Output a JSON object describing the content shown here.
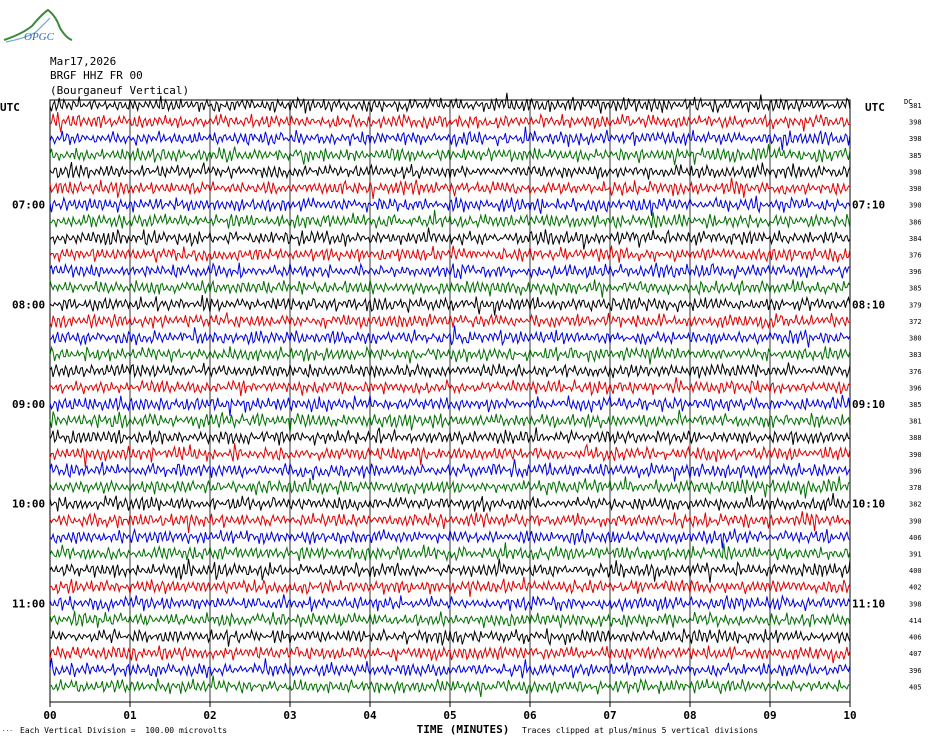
{
  "logo": {
    "text": "OPGC"
  },
  "header": {
    "date": "Mar17,2026",
    "station": "BRGF HHZ FR 00",
    "location": "(Bourganeuf Vertical)"
  },
  "left_axis_title": "UTC",
  "right_axis_title": "UTC",
  "dc_label": "DC",
  "footer": {
    "vertical_division": "Each Vertical Division =  100.00 microvolts",
    "clip_note": "Traces clipped at plus/minus 5 vertical divisions",
    "corner_mark": "..."
  },
  "colors": {
    "trace_cycle": [
      "#000000",
      "#e00000",
      "#0000e0",
      "#007000"
    ],
    "grid": "#000000"
  },
  "chart_data": {
    "type": "line",
    "title": "",
    "xlabel": "TIME (MINUTES)",
    "ylabel": "UTC",
    "x_ticks": [
      "00",
      "01",
      "02",
      "03",
      "04",
      "05",
      "06",
      "07",
      "08",
      "09",
      "10"
    ],
    "xlim": [
      0,
      10
    ],
    "rows_per_hour": 6,
    "left_time_labels": [
      {
        "row": 6,
        "label": "07:00"
      },
      {
        "row": 12,
        "label": "08:00"
      },
      {
        "row": 18,
        "label": "09:00"
      },
      {
        "row": 24,
        "label": "10:00"
      },
      {
        "row": 30,
        "label": "11:00"
      }
    ],
    "right_time_labels": [
      {
        "row": 6,
        "label": "07:10"
      },
      {
        "row": 12,
        "label": "08:10"
      },
      {
        "row": 18,
        "label": "09:10"
      },
      {
        "row": 24,
        "label": "10:10"
      },
      {
        "row": 30,
        "label": "11:10"
      }
    ],
    "dc_offsets": [
      "381",
      "398",
      "398",
      "385",
      "398",
      "390",
      "390",
      "386",
      "384",
      "376",
      "396",
      "385",
      "379",
      "372",
      "380",
      "383",
      "376",
      "396",
      "385",
      "381",
      "388",
      "390",
      "396",
      "378",
      "382",
      "390",
      "406",
      "391",
      "400",
      "402",
      "398",
      "414",
      "406",
      "407",
      "396",
      "405"
    ],
    "legend_location": "none",
    "grid": true
  }
}
